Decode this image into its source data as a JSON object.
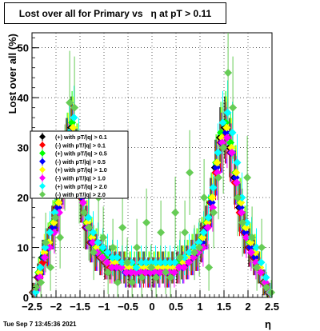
{
  "title_text": "Lost over all for Primary vs   η at pT > 0.11",
  "footer": "Tue Sep  7 13:45:36 2021",
  "chart_data": {
    "type": "scatter",
    "title": "Lost over all for Primary vs   η at pT > 0.11",
    "xlabel": "η",
    "ylabel": "Lost over all (%)",
    "xlim": [
      -2.5,
      2.5
    ],
    "ylim": [
      0,
      53
    ],
    "x_ticks": [
      "−2.5",
      "−2",
      "−1.5",
      "−1",
      "−0.5",
      "0",
      "0.5",
      "1",
      "1.5",
      "2",
      "2.5"
    ],
    "y_ticks": [
      "0",
      "10",
      "20",
      "30",
      "40",
      "50"
    ],
    "grid": true,
    "legend_position": "left",
    "x": [
      -2.45,
      -2.35,
      -2.25,
      -2.15,
      -2.05,
      -1.95,
      -1.85,
      -1.75,
      -1.65,
      -1.55,
      -1.45,
      -1.35,
      -1.25,
      -1.15,
      -1.05,
      -0.95,
      -0.85,
      -0.75,
      -0.65,
      -0.55,
      -0.45,
      -0.35,
      -0.25,
      -0.15,
      -0.05,
      0.05,
      0.15,
      0.25,
      0.35,
      0.45,
      0.55,
      0.65,
      0.75,
      0.85,
      0.95,
      1.05,
      1.15,
      1.25,
      1.35,
      1.45,
      1.55,
      1.65,
      1.75,
      1.85,
      1.95,
      2.05,
      2.15,
      2.25,
      2.35,
      2.45
    ],
    "series": [
      {
        "name": "(+) with pT/|q| > 0.1",
        "color": "#000000",
        "values": [
          1,
          4,
          8,
          10,
          14,
          18,
          24,
          30,
          34,
          28,
          20,
          14,
          11,
          9,
          8,
          7,
          7,
          6,
          6,
          6,
          5,
          5,
          6,
          6,
          5,
          5,
          6,
          6,
          5,
          6,
          6,
          7,
          7,
          8,
          9,
          11,
          14,
          19,
          26,
          32,
          34,
          30,
          24,
          18,
          13,
          10,
          8,
          6,
          3,
          1
        ]
      },
      {
        "name": "(-) with pT/|q| > 0.1",
        "color": "#ff0000",
        "values": [
          1,
          4,
          7,
          10,
          14,
          18,
          23,
          29,
          33,
          27,
          20,
          14,
          11,
          9,
          8,
          7,
          6,
          6,
          6,
          6,
          5,
          5,
          6,
          5,
          5,
          5,
          6,
          6,
          5,
          6,
          6,
          7,
          7,
          8,
          9,
          11,
          14,
          19,
          25,
          31,
          33,
          29,
          23,
          17,
          13,
          10,
          8,
          6,
          3,
          1
        ]
      },
      {
        "name": "(+) with pT/|q| > 0.5",
        "color": "#00ff00",
        "values": [
          1,
          5,
          8,
          11,
          15,
          19,
          25,
          31,
          35,
          29,
          21,
          15,
          12,
          10,
          9,
          8,
          7,
          7,
          6,
          6,
          6,
          6,
          6,
          6,
          6,
          6,
          6,
          6,
          6,
          6,
          7,
          7,
          8,
          9,
          10,
          12,
          15,
          20,
          27,
          33,
          35,
          31,
          25,
          19,
          14,
          11,
          9,
          6,
          3,
          1
        ]
      },
      {
        "name": "(-) with pT/|q| > 0.5",
        "color": "#0000ff",
        "values": [
          1,
          4,
          8,
          10,
          14,
          18,
          24,
          30,
          33,
          28,
          20,
          14,
          11,
          9,
          8,
          7,
          7,
          6,
          6,
          5,
          5,
          5,
          5,
          6,
          5,
          5,
          5,
          6,
          5,
          6,
          6,
          6,
          7,
          8,
          9,
          11,
          14,
          19,
          26,
          31,
          33,
          29,
          24,
          18,
          13,
          10,
          8,
          6,
          3,
          1
        ]
      },
      {
        "name": "(+) with pT/|q| > 1.0",
        "color": "#ffff00",
        "values": [
          1,
          5,
          9,
          11,
          15,
          19,
          25,
          31,
          34,
          29,
          21,
          15,
          12,
          10,
          8,
          7,
          7,
          7,
          6,
          6,
          6,
          5,
          6,
          6,
          6,
          6,
          6,
          6,
          6,
          6,
          6,
          7,
          8,
          9,
          10,
          12,
          15,
          20,
          27,
          32,
          34,
          30,
          25,
          19,
          14,
          11,
          9,
          6,
          3,
          1
        ]
      },
      {
        "name": "(-) with pT/|q| > 1.0",
        "color": "#ff00ff",
        "values": [
          1,
          4,
          8,
          10,
          13,
          17,
          23,
          29,
          32,
          27,
          19,
          14,
          11,
          9,
          8,
          7,
          6,
          6,
          6,
          5,
          5,
          5,
          5,
          5,
          5,
          5,
          5,
          5,
          5,
          5,
          6,
          6,
          7,
          8,
          9,
          10,
          14,
          18,
          25,
          31,
          32,
          29,
          23,
          17,
          12,
          9,
          7,
          5,
          3,
          1
        ]
      },
      {
        "name": "(+) with pT/|q| > 2.0",
        "color": "#00ffff",
        "values": [
          1,
          6,
          10,
          13,
          17,
          22,
          27,
          33,
          36,
          30,
          22,
          16,
          13,
          11,
          10,
          9,
          8,
          8,
          7,
          7,
          7,
          6,
          7,
          7,
          7,
          7,
          7,
          7,
          7,
          7,
          8,
          8,
          9,
          10,
          11,
          13,
          16,
          22,
          29,
          35,
          37,
          33,
          27,
          20,
          15,
          12,
          10,
          7,
          4,
          1
        ]
      },
      {
        "name": "(-) with pT/|q| > 2.0",
        "color": "#66cc55",
        "values": [
          2,
          3,
          11,
          6,
          16,
          12,
          26,
          39,
          38,
          23,
          17,
          14,
          9,
          20,
          12,
          5,
          10,
          3,
          14,
          7,
          3,
          10,
          4,
          15,
          6,
          4,
          13,
          5,
          4,
          17,
          8,
          13,
          25,
          9,
          10,
          20,
          6,
          17,
          24,
          30,
          45,
          38,
          20,
          15,
          24,
          12,
          6,
          10,
          2,
          1
        ]
      }
    ]
  }
}
